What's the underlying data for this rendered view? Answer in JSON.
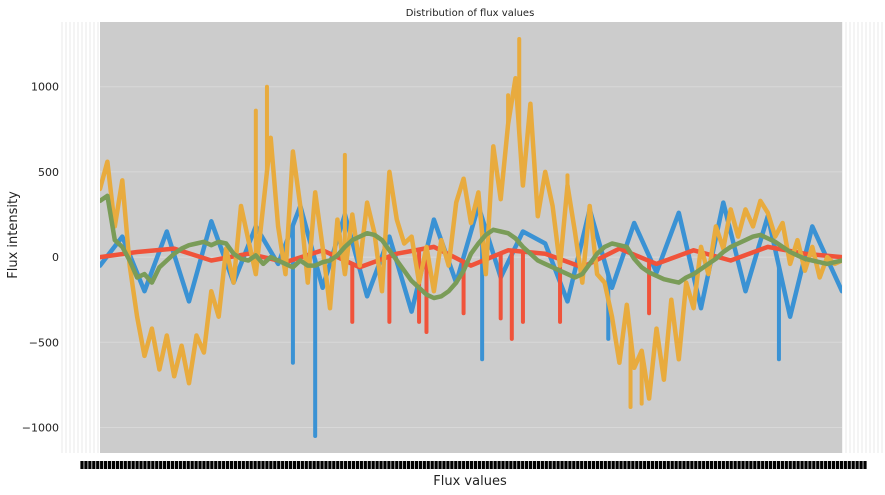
{
  "chart_data": {
    "type": "line",
    "title": "Distribution of flux values",
    "xlabel": "Flux values",
    "ylabel": "Flux intensity",
    "ylim": [
      -1150,
      1380
    ],
    "yticks": [
      {
        "value": 1000,
        "label": "1000"
      },
      {
        "value": 500,
        "label": "500"
      },
      {
        "value": 0,
        "label": "0"
      },
      {
        "value": -500,
        "label": "−500"
      },
      {
        "value": -1000,
        "label": "−1000"
      }
    ],
    "x_tick_labels_dense": true,
    "grid": true,
    "legend": "none",
    "plot_background": "#cccccc",
    "series": [
      {
        "color": "#3a92d4",
        "x": [
          0,
          3,
          6,
          9,
          12,
          15,
          18,
          21,
          24,
          27,
          30,
          33,
          36,
          39,
          42,
          45,
          48,
          51,
          54,
          57,
          60,
          63,
          66,
          69,
          72,
          75,
          78,
          81,
          84,
          87,
          90,
          93,
          96,
          100
        ],
        "values": [
          -50,
          120,
          -200,
          150,
          -260,
          210,
          -150,
          180,
          -40,
          300,
          -180,
          250,
          -230,
          120,
          -320,
          220,
          -150,
          300,
          -120,
          150,
          80,
          -260,
          280,
          -180,
          200,
          -90,
          260,
          -300,
          320,
          -200,
          240,
          -350,
          180,
          -200
        ],
        "spikes": [
          {
            "x": 29,
            "value": -1050
          },
          {
            "x": 26,
            "value": -620
          },
          {
            "x": 51.5,
            "value": -600
          },
          {
            "x": 68.5,
            "value": -480
          },
          {
            "x": 91.5,
            "value": -600
          }
        ]
      },
      {
        "color": "#f0533a",
        "x": [
          0,
          5,
          10,
          15,
          20,
          25,
          30,
          35,
          40,
          45,
          50,
          55,
          60,
          65,
          70,
          75,
          80,
          85,
          90,
          95,
          100
        ],
        "values": [
          0,
          30,
          50,
          -20,
          20,
          -30,
          40,
          -60,
          20,
          60,
          -50,
          40,
          20,
          -60,
          50,
          -40,
          40,
          -20,
          60,
          20,
          0
        ],
        "spikes": [
          {
            "x": 34,
            "value": -380
          },
          {
            "x": 39,
            "value": -380
          },
          {
            "x": 43,
            "value": -380
          },
          {
            "x": 44,
            "value": -440
          },
          {
            "x": 49,
            "value": -330
          },
          {
            "x": 54,
            "value": -360
          },
          {
            "x": 55.5,
            "value": -480
          },
          {
            "x": 57,
            "value": -380
          },
          {
            "x": 62,
            "value": -380
          },
          {
            "x": 74,
            "value": -330
          }
        ]
      },
      {
        "color": "#e8ab3e",
        "x": [
          0,
          1,
          2,
          3,
          4,
          5,
          6,
          7,
          8,
          9,
          10,
          11,
          12,
          13,
          14,
          15,
          16,
          17,
          18,
          19,
          20,
          21,
          22,
          23,
          24,
          25,
          26,
          27,
          28,
          29,
          30,
          31,
          32,
          33,
          34,
          35,
          36,
          37,
          38,
          39,
          40,
          41,
          42,
          43,
          44,
          45,
          46,
          47,
          48,
          49,
          50,
          51,
          52,
          53,
          54,
          55,
          56,
          57,
          58,
          59,
          60,
          61,
          62,
          63,
          64,
          65,
          66,
          67,
          68,
          69,
          70,
          71,
          72,
          73,
          74,
          75,
          76,
          77,
          78,
          79,
          80,
          81,
          82,
          83,
          84,
          85,
          86,
          87,
          88,
          89,
          90,
          91,
          92,
          93,
          94,
          95,
          96,
          97,
          98,
          99,
          100
        ],
        "values": [
          400,
          560,
          180,
          450,
          -50,
          -350,
          -580,
          -420,
          -660,
          -460,
          -700,
          -520,
          -740,
          -460,
          -560,
          -200,
          -350,
          50,
          -150,
          300,
          100,
          -100,
          300,
          700,
          180,
          -100,
          620,
          300,
          -150,
          380,
          60,
          -300,
          220,
          -100,
          250,
          -50,
          320,
          140,
          -200,
          500,
          220,
          80,
          120,
          -150,
          60,
          -200,
          100,
          -50,
          320,
          460,
          200,
          380,
          -100,
          650,
          340,
          780,
          1050,
          420,
          900,
          240,
          500,
          300,
          -50,
          420,
          150,
          -150,
          300,
          -100,
          -150,
          -350,
          -620,
          -280,
          -650,
          -550,
          -830,
          -420,
          -720,
          -250,
          -600,
          -150,
          -300,
          60,
          -100,
          180,
          50,
          280,
          120,
          280,
          180,
          330,
          260,
          120,
          200,
          -40,
          100,
          -80,
          60,
          -120,
          0,
          -40,
          -20
        ],
        "spikes": [
          {
            "x": 21,
            "value": 860
          },
          {
            "x": 22.5,
            "value": 1000
          },
          {
            "x": 56.5,
            "value": 1280
          },
          {
            "x": 55,
            "value": 950
          },
          {
            "x": 33,
            "value": 600
          },
          {
            "x": 63,
            "value": 480
          },
          {
            "x": 71.5,
            "value": -880
          },
          {
            "x": 73,
            "value": -860
          }
        ]
      },
      {
        "color": "#7a9c58",
        "x": [
          0,
          1,
          2,
          3,
          4,
          5,
          6,
          7,
          8,
          9,
          10,
          11,
          12,
          13,
          14,
          15,
          16,
          17,
          18,
          19,
          20,
          21,
          22,
          23,
          24,
          25,
          26,
          27,
          28,
          29,
          30,
          31,
          32,
          33,
          34,
          35,
          36,
          37,
          38,
          39,
          40,
          41,
          42,
          43,
          44,
          45,
          46,
          47,
          48,
          49,
          50,
          51,
          52,
          53,
          54,
          55,
          56,
          57,
          58,
          59,
          60,
          61,
          62,
          63,
          64,
          65,
          66,
          67,
          68,
          69,
          70,
          71,
          72,
          73,
          74,
          75,
          76,
          77,
          78,
          79,
          80,
          81,
          82,
          83,
          84,
          85,
          86,
          87,
          88,
          89,
          90,
          91,
          92,
          93,
          94,
          95,
          96,
          97,
          98,
          99,
          100
        ],
        "values": [
          330,
          360,
          100,
          60,
          -20,
          -120,
          -100,
          -150,
          -60,
          -20,
          20,
          50,
          70,
          80,
          90,
          70,
          90,
          80,
          20,
          -10,
          -20,
          10,
          -40,
          0,
          -20,
          -40,
          -60,
          -20,
          -50,
          -50,
          -30,
          -20,
          10,
          60,
          100,
          120,
          140,
          130,
          100,
          40,
          -20,
          -80,
          -140,
          -180,
          -220,
          -240,
          -230,
          -200,
          -150,
          -80,
          20,
          80,
          130,
          160,
          150,
          140,
          110,
          60,
          20,
          -20,
          -40,
          -60,
          -80,
          -100,
          -120,
          -100,
          -40,
          20,
          60,
          80,
          70,
          60,
          -10,
          -60,
          -90,
          -110,
          -130,
          -140,
          -150,
          -120,
          -100,
          -70,
          -40,
          -10,
          30,
          60,
          80,
          100,
          120,
          130,
          110,
          90,
          60,
          30,
          10,
          -10,
          -20,
          -30,
          -40,
          -30,
          -20
        ]
      }
    ]
  }
}
